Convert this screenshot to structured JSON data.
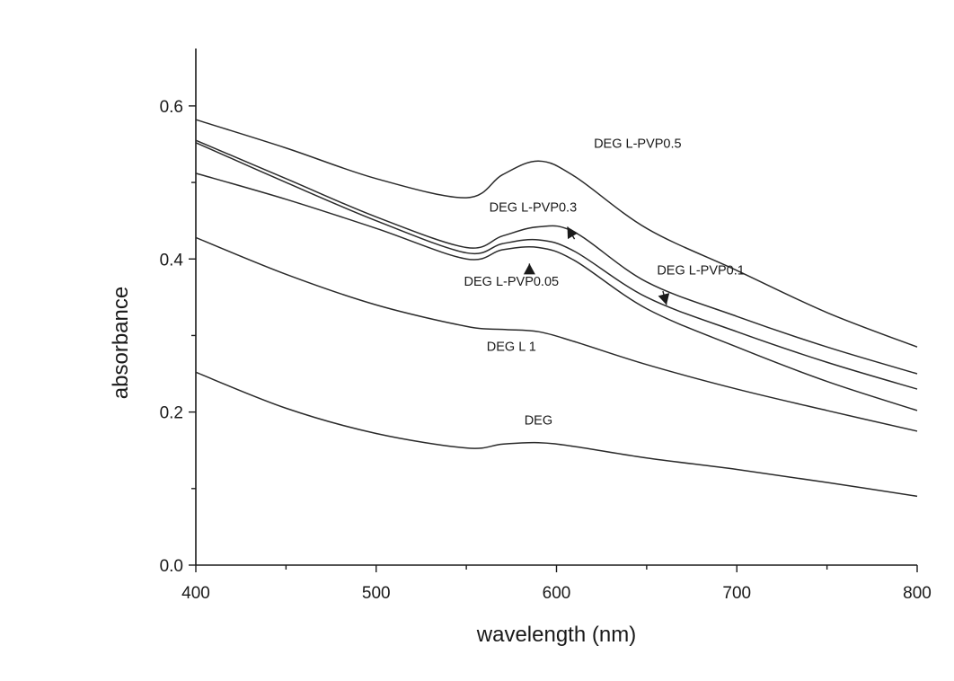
{
  "chart_data": {
    "type": "line",
    "title": "",
    "xlabel": "wavelength (nm)",
    "ylabel": "absorbance",
    "xlim": [
      400,
      800
    ],
    "ylim": [
      0.0,
      0.675
    ],
    "x_ticks": [
      400,
      500,
      600,
      700,
      800
    ],
    "x_tick_labels": [
      "400",
      "500",
      "600",
      "700",
      "800"
    ],
    "y_ticks": [
      0.0,
      0.2,
      0.4,
      0.6
    ],
    "y_tick_labels": [
      "0.0",
      "0.2",
      "0.4",
      "0.6"
    ],
    "grid": false,
    "legend": "none",
    "series": [
      {
        "name": "DEG L-PVP0.5",
        "x": [
          400,
          450,
          500,
          550,
          570,
          590,
          610,
          650,
          700,
          750,
          800
        ],
        "y": [
          0.582,
          0.545,
          0.505,
          0.48,
          0.51,
          0.528,
          0.508,
          0.44,
          0.385,
          0.33,
          0.285
        ]
      },
      {
        "name": "DEG L-PVP0.3",
        "x": [
          400,
          450,
          500,
          550,
          570,
          590,
          610,
          650,
          700,
          750,
          800
        ],
        "y": [
          0.555,
          0.505,
          0.455,
          0.415,
          0.43,
          0.442,
          0.435,
          0.37,
          0.325,
          0.285,
          0.25
        ]
      },
      {
        "name": "DEG L-PVP0.1",
        "x": [
          400,
          450,
          500,
          550,
          570,
          590,
          610,
          650,
          700,
          750,
          800
        ],
        "y": [
          0.552,
          0.5,
          0.45,
          0.408,
          0.42,
          0.425,
          0.41,
          0.35,
          0.305,
          0.265,
          0.23
        ]
      },
      {
        "name": "DEG L-PVP0.05",
        "x": [
          400,
          450,
          500,
          550,
          570,
          590,
          610,
          650,
          700,
          750,
          800
        ],
        "y": [
          0.512,
          0.478,
          0.44,
          0.4,
          0.412,
          0.415,
          0.398,
          0.335,
          0.285,
          0.24,
          0.202
        ]
      },
      {
        "name": "DEG L 1",
        "x": [
          400,
          450,
          500,
          550,
          570,
          590,
          610,
          650,
          700,
          750,
          800
        ],
        "y": [
          0.428,
          0.38,
          0.34,
          0.312,
          0.308,
          0.305,
          0.292,
          0.262,
          0.23,
          0.202,
          0.175
        ]
      },
      {
        "name": "DEG",
        "x": [
          400,
          450,
          500,
          550,
          570,
          590,
          610,
          650,
          700,
          750,
          800
        ],
        "y": [
          0.252,
          0.205,
          0.172,
          0.153,
          0.158,
          0.16,
          0.155,
          0.14,
          0.125,
          0.108,
          0.09
        ]
      }
    ],
    "annotations": [
      {
        "text": "DEG L-PVP0.5",
        "x": 645,
        "y": 0.545
      },
      {
        "text": "DEG L-PVP0.3",
        "x": 587,
        "y": 0.462
      },
      {
        "text": "DEG L-PVP0.1",
        "x": 680,
        "y": 0.38
      },
      {
        "text": "DEG L-PVP0.05",
        "x": 575,
        "y": 0.365
      },
      {
        "text": "DEG L 1",
        "x": 575,
        "y": 0.28
      },
      {
        "text": "DEG",
        "x": 590,
        "y": 0.184
      }
    ],
    "arrows": [
      {
        "from_x": 610,
        "from_y": 0.426,
        "to_x": 606,
        "to_y": 0.442,
        "dir": "up"
      },
      {
        "from_x": 585,
        "from_y": 0.384,
        "to_x": 585,
        "to_y": 0.394,
        "dir": "up"
      },
      {
        "from_x": 659,
        "from_y": 0.358,
        "to_x": 661,
        "to_y": 0.34,
        "dir": "down"
      }
    ]
  }
}
